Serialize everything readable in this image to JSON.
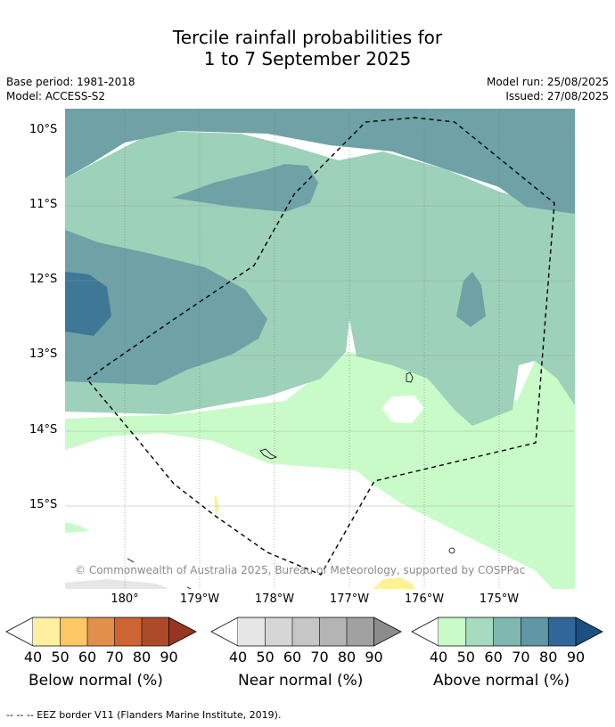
{
  "header": {
    "title_line1": "Tercile rainfall probabilities for",
    "title_line2": "1 to 7 September 2025"
  },
  "meta": {
    "base_period": "Base period: 1981-2018",
    "model": "Model: ACCESS-S2",
    "model_run": "Model run: 25/08/2025",
    "issued": "Issued: 27/08/2025"
  },
  "map": {
    "lat_labels": [
      "10°S",
      "11°S",
      "12°S",
      "13°S",
      "14°S",
      "15°S"
    ],
    "lon_labels": [
      "180°",
      "179°W",
      "178°W",
      "177°W",
      "176°W",
      "175°W"
    ],
    "copyright": "© Commonwealth of Australia 2025, Bureau of Meteorology, supported by COSPPac",
    "colors": {
      "above_50": "#c9fbc9",
      "above_60": "#9dd1b9",
      "above_70": "#6ea2a6",
      "above_80": "#3f7797",
      "near_normal": "#e6e6e6",
      "below_40": "#fff19a"
    }
  },
  "colorbars": {
    "below": {
      "label": "Below normal (%)",
      "ticks": [
        "40",
        "50",
        "60",
        "70",
        "80",
        "90"
      ],
      "colors": [
        "#ffffff",
        "#feefa1",
        "#fdc864",
        "#e0904a",
        "#cf6433",
        "#ad4a28",
        "#973520"
      ]
    },
    "near": {
      "label": "Near normal (%)",
      "ticks": [
        "40",
        "50",
        "60",
        "70",
        "80",
        "90"
      ],
      "colors": [
        "#ffffff",
        "#e6e6e6",
        "#d6d6d6",
        "#c6c6c6",
        "#b4b4b4",
        "#a1a1a1",
        "#8c8c8c"
      ]
    },
    "above": {
      "label": "Above normal (%)",
      "ticks": [
        "40",
        "50",
        "60",
        "70",
        "80",
        "90"
      ],
      "colors": [
        "#ffffff",
        "#c9fbc9",
        "#a6dbbf",
        "#80b7b0",
        "#5f97a4",
        "#316699",
        "#1d4f82"
      ]
    }
  },
  "footnote": "-- -- -- EEZ border V11 (Flanders Marine Institute, 2019)."
}
